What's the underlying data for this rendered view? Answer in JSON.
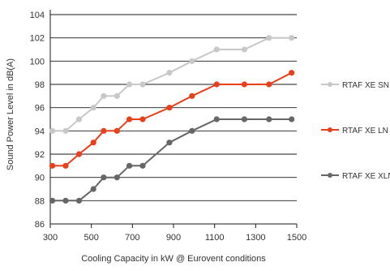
{
  "chart_data": {
    "type": "line",
    "title": "",
    "xlabel": "Cooling Capacity in kW @ Eurovent conditions",
    "ylabel": "Sound Power Level in dB(A)",
    "xlim": [
      300,
      1500
    ],
    "ylim": [
      86,
      104
    ],
    "x_ticks": [
      "300",
      "500",
      "700",
      "900",
      "1100",
      "1300",
      "1500"
    ],
    "y_ticks": [
      "86",
      "88",
      "90",
      "92",
      "94",
      "96",
      "98",
      "100",
      "102",
      "104"
    ],
    "grid": "horizontal",
    "legend_position": "right",
    "series": [
      {
        "name": "RTAF XE SN",
        "color": "#c8c8c8",
        "x": [
          310,
          375,
          440,
          510,
          560,
          625,
          685,
          750,
          880,
          990,
          1110,
          1245,
          1365,
          1475
        ],
        "y": [
          94,
          94,
          95,
          96,
          97,
          97,
          98,
          98,
          99,
          100,
          101,
          101,
          102,
          102
        ]
      },
      {
        "name": "RTAF XE LN",
        "color": "#e8401c",
        "x": [
          310,
          375,
          440,
          510,
          560,
          625,
          685,
          750,
          880,
          990,
          1110,
          1245,
          1365,
          1475
        ],
        "y": [
          91,
          91,
          92,
          93,
          94,
          94,
          95,
          95,
          96,
          97,
          98,
          98,
          98,
          99
        ]
      },
      {
        "name": "RTAF XE XLN",
        "color": "#666666",
        "x": [
          310,
          375,
          440,
          510,
          560,
          625,
          685,
          750,
          880,
          990,
          1110,
          1245,
          1365,
          1475
        ],
        "y": [
          88,
          88,
          88,
          89,
          90,
          90,
          91,
          91,
          93,
          94,
          95,
          95,
          95,
          95
        ]
      }
    ]
  }
}
